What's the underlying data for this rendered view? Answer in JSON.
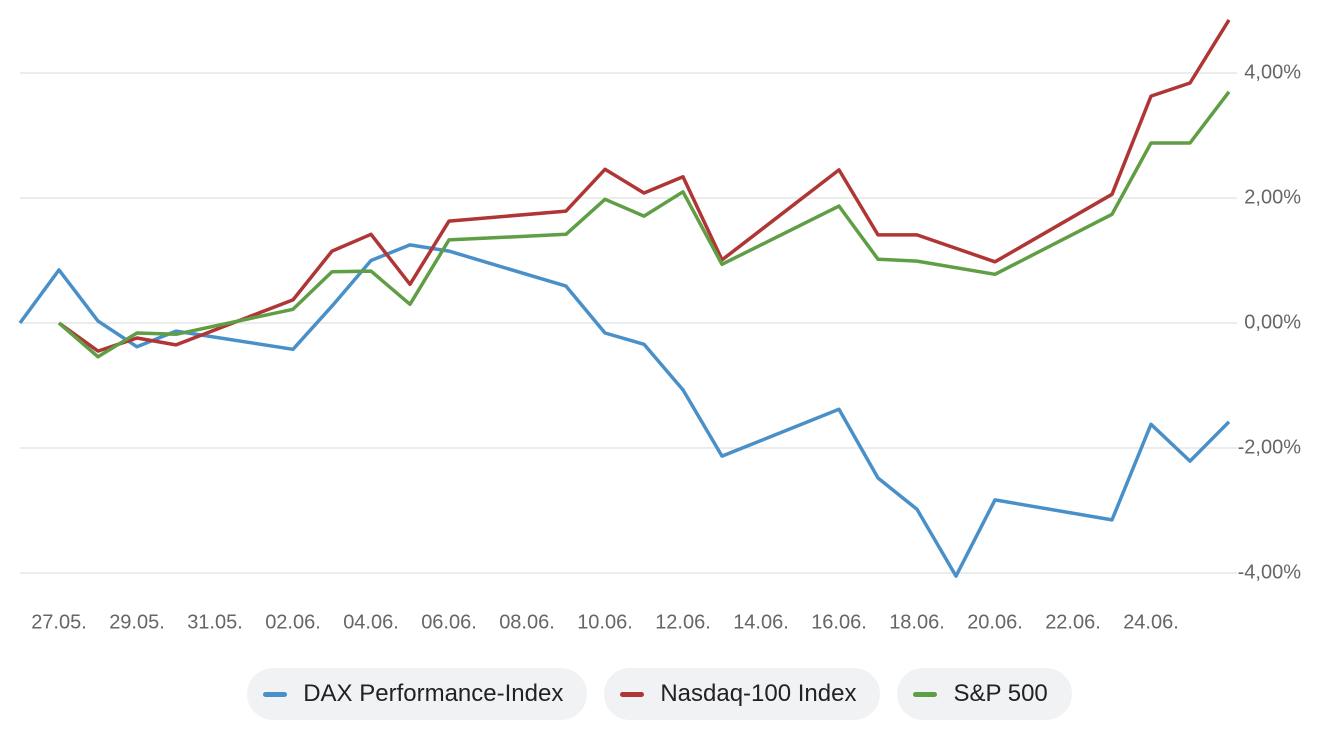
{
  "chart_data": {
    "type": "line",
    "xlim": [
      "26.05.",
      "26.06."
    ],
    "xticks": [
      "27.05.",
      "29.05.",
      "31.05.",
      "02.06.",
      "04.06.",
      "06.06.",
      "08.06.",
      "10.06.",
      "12.06.",
      "14.06.",
      "16.06.",
      "18.06.",
      "20.06.",
      "22.06.",
      "24.06."
    ],
    "ylim": [
      -4.3,
      5.2
    ],
    "yticks": [
      {
        "value": -4,
        "label": "-4,00%"
      },
      {
        "value": -2,
        "label": "-2,00%"
      },
      {
        "value": 0,
        "label": "0,00%"
      },
      {
        "value": 2,
        "label": "2,00%"
      },
      {
        "value": 4,
        "label": "4,00%"
      }
    ],
    "grid": true,
    "legend": "bottom",
    "series": [
      {
        "name": "DAX Performance-Index",
        "color": "#4a90c8",
        "x": [
          "26.05.",
          "27.05.",
          "28.05.",
          "29.05.",
          "30.05.",
          "02.06.",
          "03.06.",
          "04.06.",
          "05.06.",
          "06.06.",
          "09.06.",
          "10.06.",
          "11.06.",
          "12.06.",
          "13.06.",
          "16.06.",
          "17.06.",
          "18.06.",
          "19.06.",
          "20.06.",
          "23.06.",
          "24.06.",
          "25.06.",
          "26.06."
        ],
        "values": [
          0.0,
          0.85,
          0.03,
          -0.38,
          -0.13,
          -0.42,
          0.27,
          1.0,
          1.25,
          1.15,
          0.59,
          -0.16,
          -0.34,
          -1.07,
          -2.13,
          -1.38,
          -2.48,
          -2.98,
          -4.05,
          -2.83,
          -3.15,
          -1.62,
          -2.21,
          -1.58
        ]
      },
      {
        "name": "Nasdaq-100 Index",
        "color": "#b03535",
        "x": [
          "27.05.",
          "28.05.",
          "29.05.",
          "30.05.",
          "02.06.",
          "03.06.",
          "04.06.",
          "05.06.",
          "06.06.",
          "09.06.",
          "10.06.",
          "11.06.",
          "12.06.",
          "13.06.",
          "16.06.",
          "17.06.",
          "18.06.",
          "20.06.",
          "23.06.",
          "24.06.",
          "25.06.",
          "26.06."
        ],
        "values": [
          0.0,
          -0.45,
          -0.24,
          -0.35,
          0.37,
          1.15,
          1.42,
          0.62,
          1.63,
          1.79,
          2.46,
          2.08,
          2.34,
          1.01,
          2.45,
          1.41,
          1.41,
          0.98,
          2.06,
          3.63,
          3.84,
          4.85
        ]
      },
      {
        "name": "S&P 500",
        "color": "#5f9e44",
        "x": [
          "27.05.",
          "28.05.",
          "29.05.",
          "30.05.",
          "02.06.",
          "03.06.",
          "04.06.",
          "05.06.",
          "06.06.",
          "09.06.",
          "10.06.",
          "11.06.",
          "12.06.",
          "13.06.",
          "16.06.",
          "17.06.",
          "18.06.",
          "20.06.",
          "23.06.",
          "24.06.",
          "25.06.",
          "26.06."
        ],
        "values": [
          0.0,
          -0.54,
          -0.16,
          -0.18,
          0.22,
          0.82,
          0.83,
          0.3,
          1.33,
          1.42,
          1.98,
          1.71,
          2.1,
          0.94,
          1.87,
          1.02,
          0.99,
          0.78,
          1.74,
          2.88,
          2.88,
          3.7
        ]
      }
    ]
  }
}
